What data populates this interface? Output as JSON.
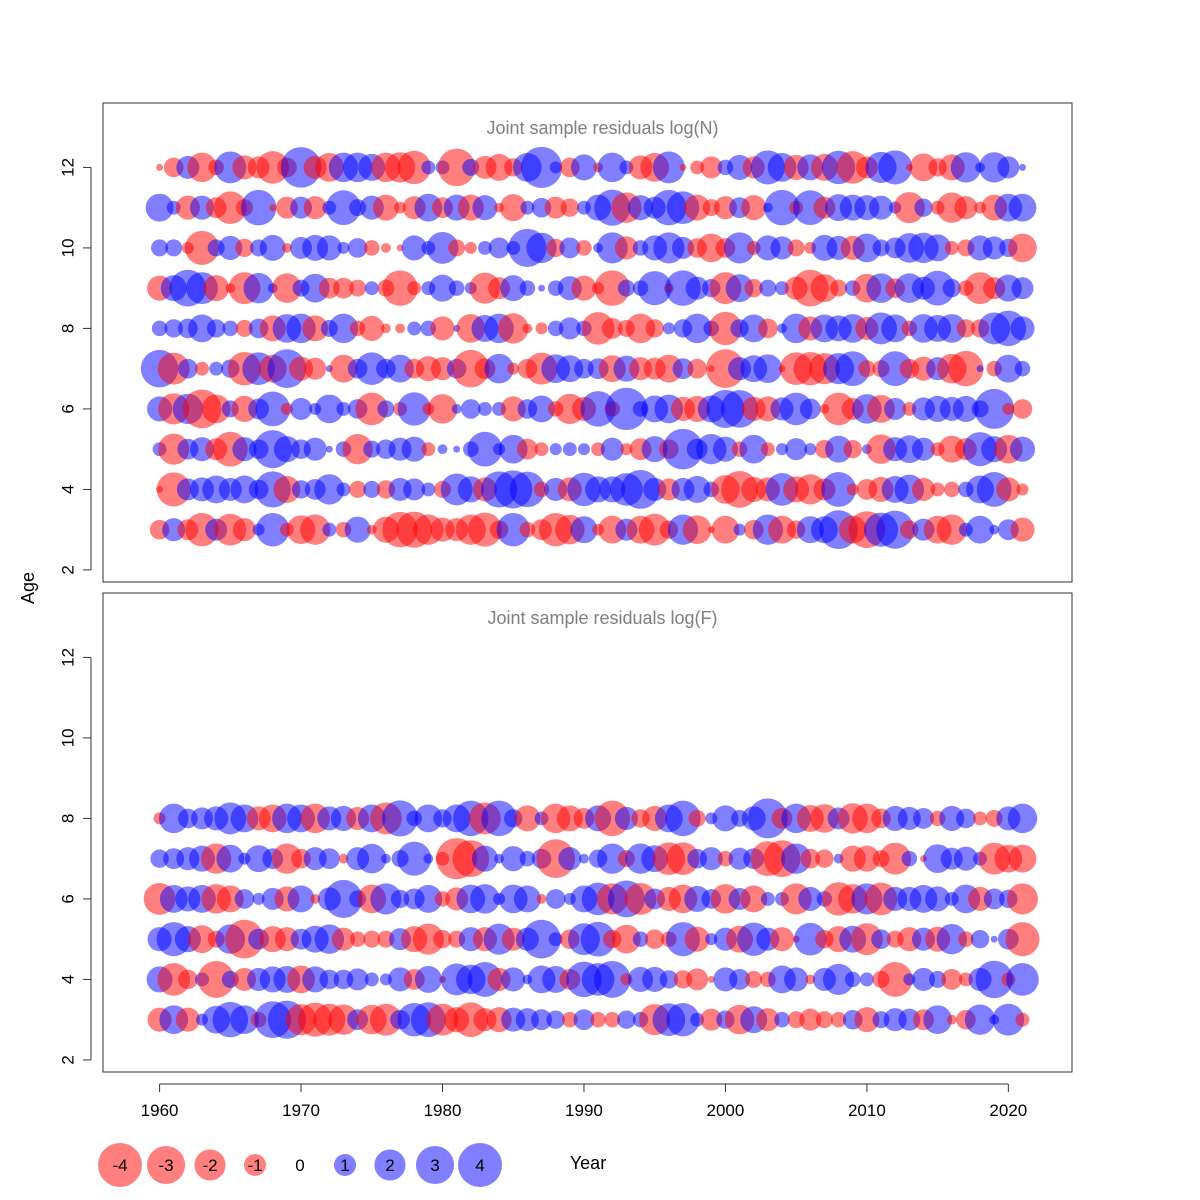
{
  "chart_data": [
    {
      "type": "scatter",
      "subtype": "bubble",
      "title": "Joint sample residuals log(N)",
      "xlabel": "Year",
      "ylabel": "Age",
      "xlim": [
        1956,
        2024.5
      ],
      "ylim": [
        1.7,
        13.6
      ],
      "x_ticks": [
        1960,
        1970,
        1980,
        1990,
        2000,
        2010,
        2020
      ],
      "y_ticks": [
        2,
        4,
        6,
        8,
        10,
        12
      ],
      "years": [
        1960,
        2021
      ],
      "ages": [
        3,
        4,
        5,
        6,
        7,
        8,
        9,
        10,
        11,
        12
      ],
      "residuals": [
        [
          -0.8,
          1.1,
          -0.9,
          -2.3,
          1.0,
          -2.1,
          -1.1,
          0.3,
          2.3,
          -0.4,
          -1.7,
          -1.9,
          0.4,
          -0.5,
          1.4,
          -0.2,
          -1.4,
          -2.6,
          -2.7,
          -1.9,
          -1.2,
          -1.1,
          -1.9,
          -2.4,
          -0.7,
          2.3,
          -0.5,
          -0.9,
          -2.3,
          -1.8,
          1.5,
          -0.3,
          -1.6,
          1.0,
          -1.6,
          -2.1,
          -0.7,
          1.9,
          -1.7,
          -0.1,
          -1.6,
          0.3,
          -0.8,
          1.9,
          -1.6,
          -0.7,
          1.5,
          1.5,
          3.1,
          -1.6,
          -2.8,
          2.4,
          3.0,
          -0.7,
          1.0,
          -1.6,
          -1.9,
          0.4,
          1.6,
          0.2,
          0.9,
          -1.2
        ],
        [
          -0.1,
          -2.4,
          1.0,
          1.2,
          1.6,
          1.1,
          1.6,
          0.8,
          2.7,
          -1.5,
          0.7,
          0.9,
          1.9,
          0.4,
          -0.6,
          0.6,
          -0.7,
          1.1,
          1.0,
          0.4,
          -0.6,
          2.1,
          1.4,
          -1.2,
          2.7,
          3.0,
          2.6,
          -0.5,
          1.1,
          -1.2,
          2.3,
          1.4,
          1.4,
          2.2,
          3.1,
          1.1,
          -1.0,
          1.1,
          1.5,
          0.5,
          -1.7,
          -2.8,
          -1.3,
          -1.2,
          2.2,
          -1.4,
          -1.9,
          -1.0,
          2.5,
          -0.3,
          -0.9,
          -1.3,
          1.5,
          1.8,
          -1.1,
          -0.4,
          -0.5,
          0.5,
          1.6,
          2.5,
          -1.2,
          -0.3
        ],
        [
          0.4,
          -2.0,
          0.9,
          1.2,
          -1.0,
          -2.5,
          1.2,
          0.8,
          3.0,
          1.4,
          0.8,
          1.1,
          0.1,
          0.5,
          -1.9,
          0.6,
          0.8,
          1.1,
          1.3,
          -0.4,
          0.2,
          0.1,
          0.5,
          2.5,
          0.3,
          1.7,
          -0.9,
          -0.4,
          0.3,
          0.4,
          0.3,
          -0.4,
          1.1,
          -0.3,
          -1.0,
          1.4,
          -0.8,
          3.4,
          0.9,
          1.9,
          1.3,
          -0.5,
          1.7,
          -0.4,
          0.3,
          1.0,
          0.3,
          -0.7,
          1.5,
          -0.7,
          0.2,
          -1.8,
          1.2,
          1.6,
          1.1,
          -0.4,
          -1.5,
          -1.0,
          2.4,
          1.4,
          -1.7,
          1.3
        ],
        [
          1.3,
          -2.0,
          1.9,
          -3.1,
          -1.7,
          0.6,
          -1.4,
          0.9,
          2.5,
          -0.3,
          1.0,
          0.3,
          1.7,
          0.4,
          0.8,
          -2.2,
          0.6,
          -0.4,
          2.3,
          -0.3,
          -1.8,
          0.2,
          0.8,
          0.4,
          0.4,
          -1.3,
          0.8,
          1.5,
          -0.5,
          -1.9,
          -1.2,
          2.6,
          -0.5,
          3.7,
          0.5,
          1.5,
          1.7,
          -1.2,
          -1.4,
          1.5,
          3.0,
          2.9,
          -1.2,
          -1.3,
          1.1,
          2.2,
          0.9,
          -0.2,
          -2.2,
          -1.0,
          1.8,
          -1.6,
          1.0,
          -0.4,
          1.1,
          1.4,
          1.2,
          1.4,
          0.6,
          3.3,
          -0.3,
          -0.8
        ],
        [
          2.9,
          -2.1,
          0.8,
          -0.4,
          0.4,
          0.7,
          -2.3,
          2.2,
          -1.6,
          3.1,
          -1.2,
          -1.0,
          0.1,
          -1.6,
          0.8,
          2.2,
          0.8,
          1.6,
          -0.8,
          -1.3,
          -1.1,
          0.8,
          -2.9,
          -0.9,
          1.8,
          -0.3,
          -0.8,
          -2.1,
          1.7,
          1.5,
          0.8,
          0.9,
          -1.5,
          1.4,
          -1.1,
          -1.0,
          -1.6,
          0.9,
          -0.8,
          -0.1,
          -3.1,
          1.1,
          1.5,
          1.7,
          -0.1,
          -2.2,
          -2.3,
          -2.0,
          2.0,
          2.5,
          -0.6,
          -0.6,
          2.5,
          -0.8,
          -1.2,
          1.1,
          -1.8,
          -2.6,
          0.1,
          -0.5,
          1.6,
          0.5
        ],
        [
          0.5,
          0.7,
          0.8,
          1.6,
          0.7,
          0.5,
          -0.6,
          0.8,
          -1.4,
          1.7,
          1.8,
          -1.4,
          0.6,
          1.8,
          -0.5,
          -1.3,
          -0.2,
          -0.2,
          0.4,
          0.5,
          -1.2,
          0.1,
          -1.7,
          1.5,
          1.8,
          -1.9,
          -0.2,
          -0.3,
          0.5,
          1.0,
          0.5,
          -2.2,
          -0.9,
          -0.6,
          -1.8,
          -0.7,
          0.3,
          0.7,
          1.8,
          0.5,
          -2.3,
          0.7,
          1.6,
          -0.8,
          0.2,
          1.8,
          -1.2,
          1.6,
          1.4,
          1.7,
          -1.1,
          2.1,
          1.6,
          -0.5,
          1.7,
          1.5,
          1.7,
          -0.7,
          -0.7,
          2.1,
          2.6,
          1.2
        ],
        [
          -1.3,
          1.4,
          2.8,
          2.1,
          -1.4,
          -0.2,
          -2.1,
          1.9,
          0.2,
          -1.8,
          0.6,
          1.7,
          -0.9,
          -0.9,
          -0.6,
          0.4,
          -0.6,
          -2.6,
          -0.4,
          0.4,
          1.5,
          0.5,
          0.3,
          -2.0,
          -1.0,
          1.4,
          0.5,
          0.1,
          0.5,
          1.2,
          -1.3,
          -0.3,
          -2.6,
          0.6,
          0.5,
          2.4,
          -0.2,
          2.6,
          1.1,
          0.7,
          -2.1,
          1.6,
          -0.7,
          0.6,
          0.4,
          -1.1,
          -2.8,
          -1.6,
          -0.6,
          0.5,
          -1.7,
          1.8,
          -0.8,
          1.8,
          1.1,
          2.5,
          0.7,
          -0.5,
          -2.1,
          -1.0,
          1.5,
          1.0
        ],
        [
          0.6,
          0.6,
          -0.3,
          -2.4,
          0.6,
          1.2,
          -0.7,
          0.6,
          1.4,
          -0.2,
          1.0,
          1.4,
          1.3,
          0.3,
          0.8,
          -0.5,
          -0.2,
          -0.1,
          1.3,
          0.4,
          2.1,
          -0.6,
          -0.3,
          0.4,
          0.9,
          0.4,
          3.0,
          1.9,
          -0.7,
          0.9,
          -0.5,
          0.2,
          2.0,
          -1.1,
          0.5,
          1.3,
          2.0,
          1.0,
          -0.8,
          -1.7,
          -0.8,
          2.0,
          -0.4,
          1.3,
          1.1,
          -0.6,
          -0.3,
          1.4,
          1.2,
          -1.2,
          1.7,
          0.6,
          0.9,
          1.8,
          1.9,
          1.5,
          -0.4,
          -0.6,
          1.3,
          1.1,
          0.7,
          -1.7
        ],
        [
          1.6,
          0.4,
          -1.2,
          1.2,
          -0.9,
          -2.2,
          -0.6,
          2.6,
          -0.1,
          -1.0,
          1.0,
          -1.1,
          0.4,
          2.5,
          0.6,
          1.2,
          -1.4,
          -0.3,
          -1.1,
          1.6,
          -0.9,
          1.4,
          -1.4,
          1.3,
          -0.2,
          -1.5,
          0.4,
          0.8,
          -1.0,
          -0.7,
          0.4,
          1.4,
          2.7,
          -1.9,
          1.3,
          1.0,
          2.6,
          2.2,
          -1.4,
          -0.6,
          -1.1,
          0.9,
          -1.3,
          0.2,
          2.6,
          -0.4,
          2.5,
          -1.0,
          1.5,
          1.4,
          1.3,
          1.2,
          0.3,
          -2.0,
          0.7,
          -0.4,
          -1.9,
          -1.1,
          -0.3,
          -1.4,
          1.6,
          1.6
        ],
        [
          -0.1,
          -0.8,
          1.1,
          -1.8,
          -0.5,
          2.1,
          -1.2,
          -1.0,
          -2.2,
          -0.8,
          3.4,
          -1.1,
          -1.7,
          1.8,
          1.8,
          1.5,
          -1.8,
          -1.9,
          -2.3,
          0.4,
          0.4,
          -2.9,
          0.6,
          -1.1,
          -1.5,
          -0.7,
          1.7,
          3.5,
          0.3,
          -0.8,
          1.4,
          -0.2,
          1.8,
          0.4,
          -1.2,
          -1.7,
          2.1,
          -0.1,
          -0.4,
          -1.0,
          0.5,
          1.3,
          -1.0,
          2.4,
          1.7,
          -1.3,
          1.4,
          -1.5,
          2.3,
          -2.2,
          -1.0,
          2.0,
          2.4,
          -0.1,
          -1.6,
          -0.7,
          -1.4,
          1.9,
          0.2,
          1.9,
          1.0,
          0.1
        ]
      ]
    },
    {
      "type": "scatter",
      "subtype": "bubble",
      "title": "Joint sample residuals log(F)",
      "xlabel": "Year",
      "ylabel": "Age",
      "xlim": [
        1956,
        2024.5
      ],
      "ylim": [
        1.7,
        13.6
      ],
      "x_ticks": [
        1960,
        1970,
        1980,
        1990,
        2000,
        2010,
        2020
      ],
      "y_ticks": [
        2,
        4,
        6,
        8,
        10,
        12
      ],
      "years": [
        1960,
        2021
      ],
      "ages": [
        3,
        4,
        5,
        6,
        7,
        8
      ],
      "residuals": [
        [
          -1.2,
          1.7,
          -1.2,
          0.3,
          1.6,
          2.6,
          1.7,
          -0.5,
          2.8,
          3.0,
          -2.0,
          -2.4,
          -2.1,
          -1.9,
          0.9,
          -1.8,
          -2.1,
          0.8,
          2.3,
          2.5,
          -2.1,
          -1.3,
          -2.5,
          -1.1,
          -1.3,
          1.2,
          1.1,
          0.9,
          0.7,
          -0.5,
          0.9,
          -0.5,
          -0.5,
          0.7,
          0.5,
          -2.0,
          2.2,
          2.3,
          0.4,
          -1.0,
          0.7,
          -1.8,
          1.5,
          -1.1,
          0.5,
          -0.6,
          -1.0,
          -0.6,
          -0.5,
          0.8,
          -1.3,
          0.6,
          1.1,
          1.0,
          -0.9,
          1.7,
          -0.2,
          -0.8,
          1.9,
          0.2,
          2.1,
          -0.4
        ],
        [
          1.4,
          -2.2,
          -0.8,
          0.4,
          -2.8,
          0.6,
          -1.1,
          1.1,
          1.4,
          1.5,
          -1.6,
          1.4,
          0.8,
          0.8,
          1.0,
          0.4,
          0.3,
          1.2,
          -0.9,
          1.5,
          -0.1,
          2.1,
          1.8,
          2.5,
          -1.1,
          1.2,
          0.2,
          1.6,
          1.5,
          -0.9,
          2.6,
          2.2,
          2.8,
          -0.3,
          1.3,
          1.3,
          0.7,
          -0.7,
          -1.0,
          -0.1,
          1.2,
          0.9,
          -0.6,
          -0.5,
          1.6,
          1.2,
          -0.2,
          1.1,
          2.0,
          0.5,
          0.4,
          -0.6,
          -2.5,
          0.3,
          1.1,
          0.6,
          -0.9,
          -0.4,
          1.1,
          2.9,
          -0.4,
          2.2
        ],
        [
          1.2,
          2.4,
          1.4,
          -1.6,
          -0.6,
          1.8,
          -3.1,
          0.9,
          -1.4,
          -1.2,
          0.9,
          1.5,
          1.8,
          -1.1,
          -0.5,
          -0.6,
          -0.6,
          1.0,
          -1.4,
          -2.0,
          -0.7,
          -0.6,
          1.2,
          -1.2,
          2.0,
          -1.1,
          1.1,
          3.1,
          0.4,
          -0.8,
          2.1,
          2.5,
          -0.7,
          -1.7,
          0.5,
          -0.8,
          -0.5,
          2.4,
          -1.3,
          0.3,
          1.1,
          -1.5,
          2.3,
          1.1,
          -1.2,
          -0.1,
          2.2,
          -0.7,
          -1.4,
          1.5,
          -2.1,
          0.8,
          -0.6,
          -1.2,
          1.1,
          -1.3,
          1.9,
          -0.5,
          0.7,
          0.1,
          0.9,
          -2.4
        ],
        [
          -2.1,
          1.6,
          1.3,
          1.6,
          -1.8,
          -1.5,
          0.8,
          0.3,
          1.0,
          -1.3,
          1.5,
          -0.2,
          1.1,
          3.0,
          0.6,
          -1.7,
          2.0,
          0.7,
          0.9,
          1.6,
          -0.5,
          -1.1,
          1.7,
          1.8,
          0.3,
          1.7,
          1.5,
          -0.2,
          0.8,
          0.3,
          1.5,
          2.2,
          -2.0,
          2.8,
          -2.1,
          0.9,
          -1.2,
          -1.7,
          1.4,
          0.8,
          -1.8,
          1.0,
          -1.5,
          0.4,
          0.4,
          -2.0,
          1.2,
          0.5,
          -2.3,
          -1.8,
          2.0,
          -2.2,
          1.2,
          1.2,
          1.6,
          1.3,
          0.4,
          1.7,
          -1.2,
          0.9,
          0.7,
          -2.0
        ],
        [
          0.7,
          0.9,
          1.1,
          1.4,
          -1.9,
          1.6,
          0.3,
          1.5,
          0.9,
          -1.9,
          -0.8,
          1.1,
          0.9,
          -0.2,
          1.1,
          1.8,
          0.2,
          0.6,
          2.4,
          0.2,
          -0.4,
          -3.5,
          -2.8,
          1.4,
          0.2,
          1.3,
          0.5,
          0.8,
          -3.1,
          1.1,
          0.2,
          0.7,
          1.9,
          -0.6,
          1.9,
          1.5,
          -2.2,
          -2.2,
          0.8,
          1.1,
          -0.5,
          1.0,
          0.9,
          -2.5,
          -2.8,
          1.9,
          -0.8,
          -0.7,
          0.2,
          -1.4,
          -1.4,
          -0.6,
          -2.1,
          0.5,
          -0.1,
          1.7,
          1.0,
          1.2,
          0.4,
          -2.1,
          -1.6,
          -1.6
        ],
        [
          -0.3,
          1.8,
          0.8,
          1.0,
          1.2,
          2.1,
          1.6,
          -1.2,
          -1.6,
          1.8,
          1.6,
          -1.8,
          1.2,
          1.3,
          -1.1,
          1.6,
          -2.1,
          2.7,
          0.5,
          1.6,
          0.7,
          1.6,
          2.6,
          -2.1,
          2.6,
          0.7,
          -1.4,
          0.4,
          -1.8,
          -1.4,
          -0.9,
          1.4,
          -2.6,
          1.1,
          -0.7,
          -1.3,
          1.6,
          2.6,
          -0.6,
          0.3,
          1.4,
          0.6,
          1.2,
          3.3,
          -0.9,
          1.8,
          -1.5,
          -1.7,
          1.0,
          -1.9,
          -1.8,
          -0.8,
          1.3,
          1.1,
          0.9,
          -0.5,
          1.3,
          0.8,
          -0.4,
          -0.6,
          1.2,
          1.8
        ]
      ]
    }
  ],
  "legend": {
    "entries": [
      {
        "label": "-4",
        "value": -4
      },
      {
        "label": "-3",
        "value": -3
      },
      {
        "label": "-2",
        "value": -2
      },
      {
        "label": "-1",
        "value": -1
      },
      {
        "label": "0",
        "value": 0
      },
      {
        "label": "1",
        "value": 1
      },
      {
        "label": "2",
        "value": 2
      },
      {
        "label": "3",
        "value": 3
      },
      {
        "label": "4",
        "value": 4
      }
    ]
  },
  "colors": {
    "negative": "#ff0000",
    "positive": "#0000ff",
    "bubble_opacity": "0.5",
    "title_color": "#7f7f7f",
    "axis_color": "#333333"
  }
}
